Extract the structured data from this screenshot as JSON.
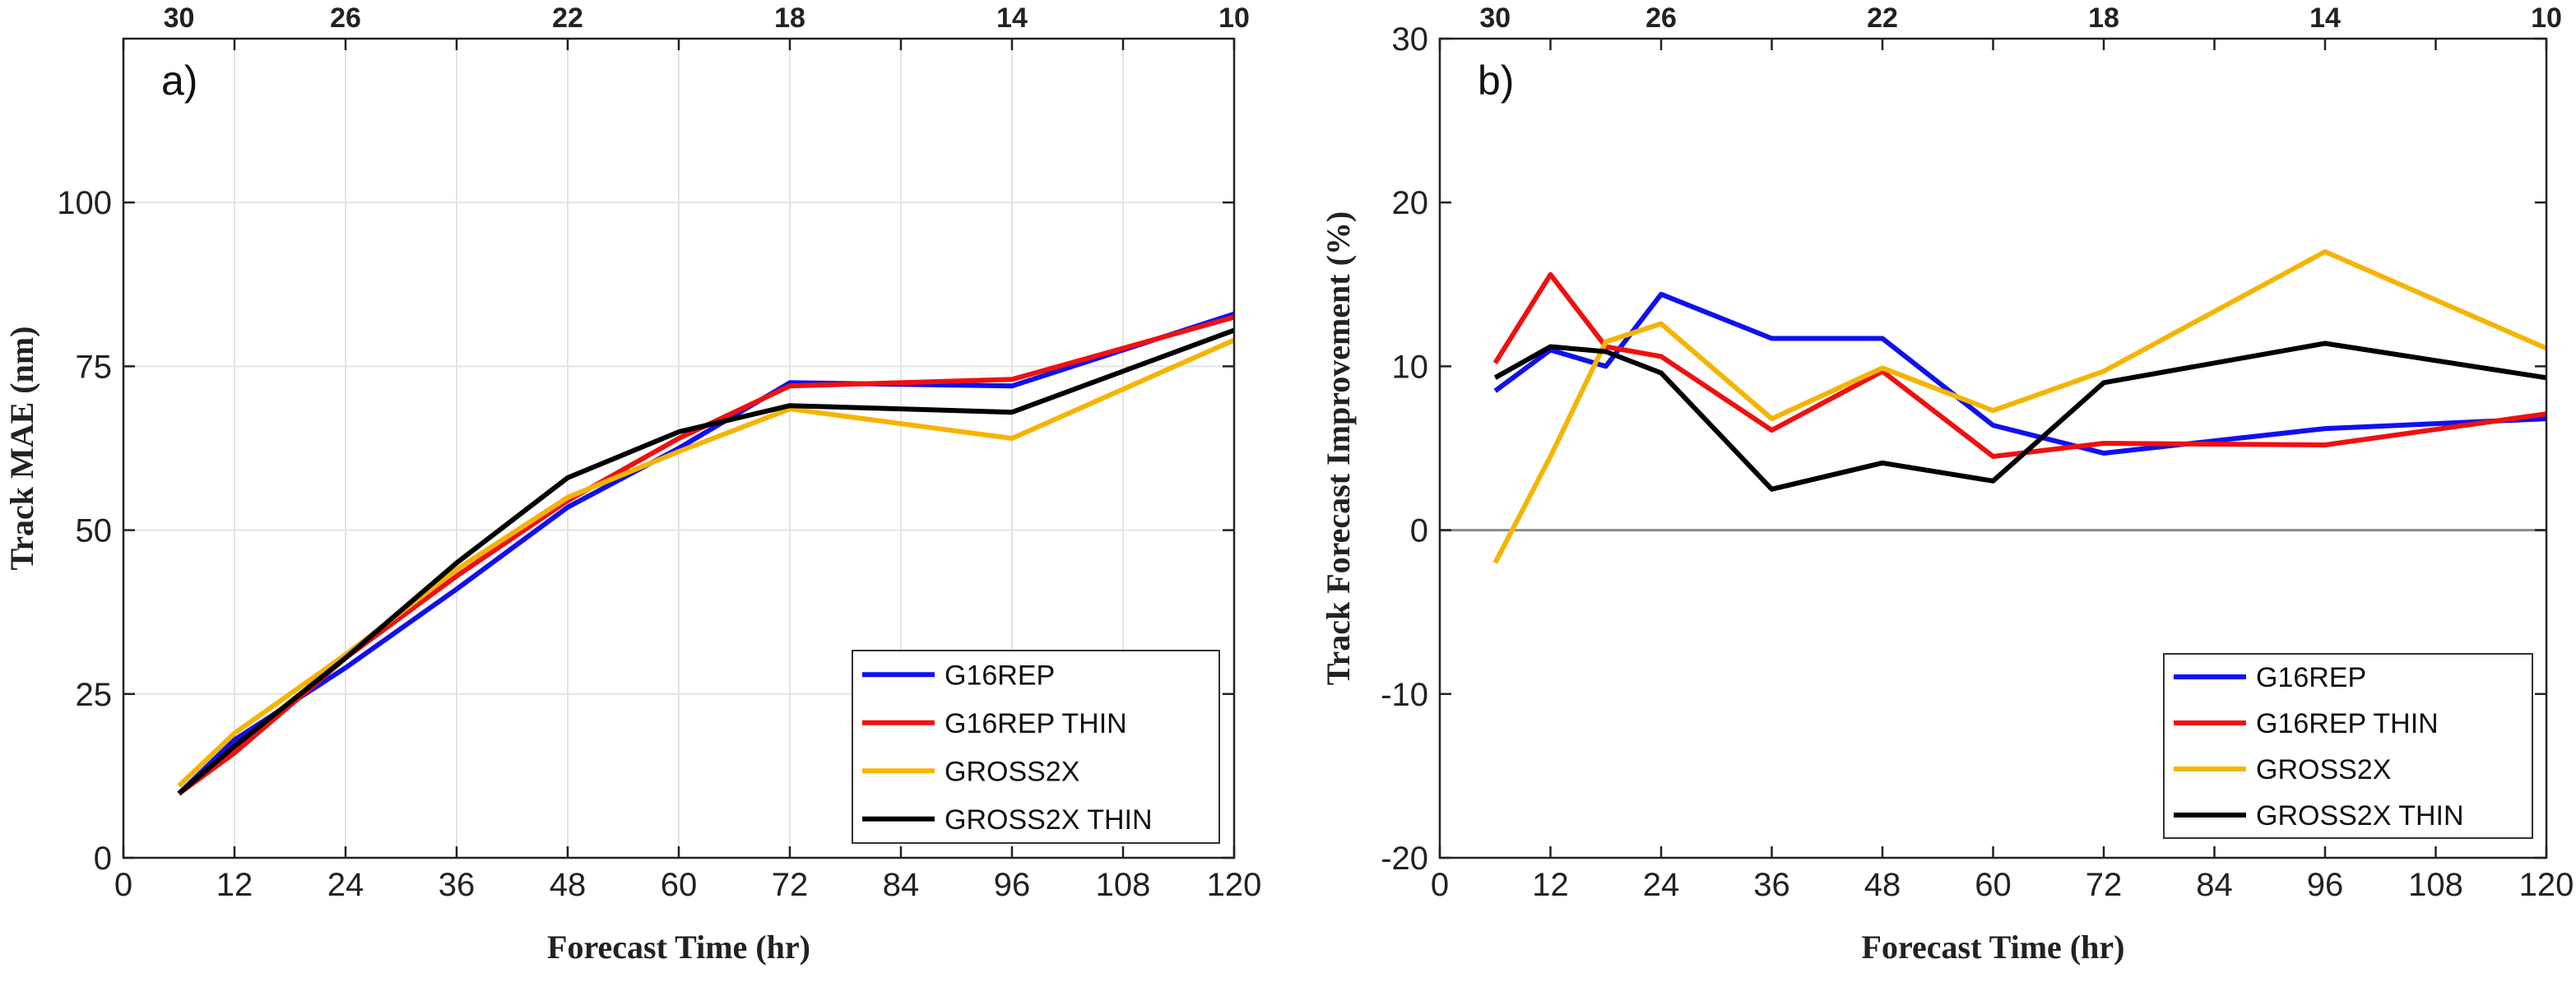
{
  "chart_data": [
    {
      "type": "line",
      "panel_label": "a)",
      "xlabel": "Forecast Time (hr)",
      "ylabel": "Track MAE (nm)",
      "xlim": [
        0,
        120
      ],
      "ylim": [
        0,
        125
      ],
      "xticks": [
        0,
        12,
        24,
        36,
        48,
        60,
        72,
        84,
        96,
        108,
        120
      ],
      "yticks": [
        0,
        25,
        50,
        75,
        100
      ],
      "top_axis": {
        "positions": [
          6,
          24,
          48,
          72,
          96,
          120
        ],
        "labels": [
          "30",
          "26",
          "22",
          "18",
          "14",
          "10"
        ]
      },
      "grid": true,
      "legend_position": "bottom-right",
      "series": [
        {
          "name": "G16REP",
          "color": "#1010f0",
          "x": [
            6,
            12,
            24,
            36,
            48,
            60,
            72,
            96,
            120
          ],
          "y": [
            9.8,
            18,
            29,
            41,
            53.5,
            62.5,
            72.5,
            72,
            83
          ]
        },
        {
          "name": "G16REP THIN",
          "color": "#f01010",
          "x": [
            6,
            12,
            24,
            36,
            48,
            60,
            72,
            96,
            120
          ],
          "y": [
            9.8,
            16,
            30.5,
            43,
            54.5,
            64,
            72,
            73,
            82.5
          ]
        },
        {
          "name": "GROSS2X",
          "color": "#f5b400",
          "x": [
            6,
            12,
            24,
            36,
            48,
            60,
            72,
            96,
            120
          ],
          "y": [
            11,
            19,
            31,
            44,
            55,
            62,
            68.5,
            64,
            79
          ]
        },
        {
          "name": "GROSS2X THIN",
          "color": "#000000",
          "x": [
            6,
            12,
            24,
            36,
            48,
            60,
            72,
            96,
            120
          ],
          "y": [
            9.8,
            17,
            30.5,
            45,
            58,
            65,
            69,
            68,
            80.5
          ]
        }
      ]
    },
    {
      "type": "line",
      "panel_label": "b)",
      "xlabel": "Forecast Time (hr)",
      "ylabel": "Track Forecast Improvement (%)",
      "xlim": [
        0,
        120
      ],
      "ylim": [
        -20,
        30
      ],
      "xticks": [
        0,
        12,
        24,
        36,
        48,
        60,
        72,
        84,
        96,
        108,
        120
      ],
      "yticks": [
        -20,
        -10,
        0,
        10,
        20,
        30
      ],
      "top_axis": {
        "positions": [
          6,
          24,
          48,
          72,
          96,
          120
        ],
        "labels": [
          "30",
          "26",
          "22",
          "18",
          "14",
          "10"
        ]
      },
      "grid": false,
      "zero_line": true,
      "legend_position": "bottom-right",
      "series": [
        {
          "name": "G16REP",
          "color": "#1010f0",
          "x": [
            6,
            12,
            18,
            24,
            36,
            48,
            60,
            72,
            96,
            120
          ],
          "y": [
            8.5,
            11,
            10,
            14.4,
            11.7,
            11.7,
            6.4,
            4.7,
            6.2,
            6.8
          ]
        },
        {
          "name": "G16REP THIN",
          "color": "#f01010",
          "x": [
            6,
            12,
            18,
            24,
            36,
            48,
            60,
            72,
            96,
            120
          ],
          "y": [
            10.2,
            15.6,
            11.2,
            10.6,
            6.1,
            9.7,
            4.5,
            5.3,
            5.2,
            7.1
          ]
        },
        {
          "name": "GROSS2X",
          "color": "#f5b400",
          "x": [
            6,
            12,
            18,
            24,
            36,
            48,
            60,
            72,
            96,
            120
          ],
          "y": [
            -2,
            4.5,
            11.5,
            12.6,
            6.8,
            9.9,
            7.3,
            9.7,
            17,
            11.1
          ]
        },
        {
          "name": "GROSS2X THIN",
          "color": "#000000",
          "x": [
            6,
            12,
            18,
            24,
            36,
            48,
            60,
            72,
            96,
            120
          ],
          "y": [
            9.3,
            11.2,
            10.9,
            9.6,
            2.5,
            4.1,
            3,
            9,
            11.4,
            9.3
          ]
        }
      ]
    }
  ]
}
